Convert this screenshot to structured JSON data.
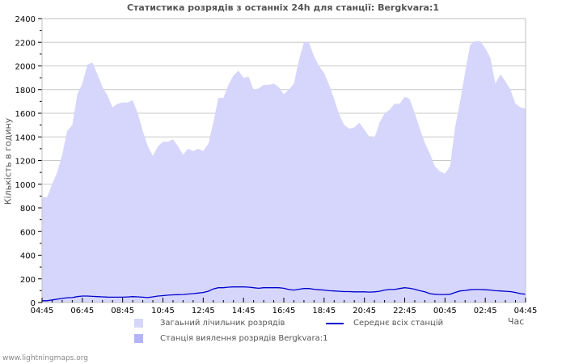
{
  "title": "Статистика розрядів з останніх 24h для станції: Bergkvara:1",
  "watermark": "www.lightningmaps.org",
  "colors": {
    "total_fill": "#d6d6fc",
    "station_fill": "#b4b4f8",
    "average_line": "#0000cc",
    "grid": "#c8c8c8",
    "axis": "#c0c0c0"
  },
  "chart_data": {
    "type": "area",
    "title": "Статистика розрядів з останніх 24h для станції: Bergkvara:1",
    "xlabel": "Час",
    "ylabel": "Кількість в годину",
    "ylim": [
      0,
      2400
    ],
    "yticks": [
      0,
      200,
      400,
      600,
      800,
      1000,
      1200,
      1400,
      1600,
      1800,
      2000,
      2200,
      2400
    ],
    "xtick_labels": [
      "04:45",
      "06:45",
      "08:45",
      "10:45",
      "12:45",
      "14:45",
      "16:45",
      "18:45",
      "20:45",
      "22:45",
      "00:45",
      "02:45",
      "04:45"
    ],
    "grid": true,
    "legend_position": "bottom",
    "legend": [
      {
        "name": "Загаьний лічильник розрядів",
        "kind": "area",
        "color": "#d6d6fc"
      },
      {
        "name": "Середнє всіх станцій",
        "kind": "line",
        "color": "#0000cc"
      },
      {
        "name": "Станція виялення розрядів Bergkvara:1",
        "kind": "area",
        "color": "#b4b4f8"
      }
    ],
    "x_step_minutes": 15,
    "x_start": "04:45",
    "series": [
      {
        "name": "Загаьний лічильник розрядів",
        "type": "area",
        "values": [
          890,
          890,
          1000,
          1100,
          1250,
          1450,
          1500,
          1760,
          1850,
          2010,
          2030,
          1930,
          1820,
          1750,
          1650,
          1680,
          1690,
          1690,
          1710,
          1600,
          1450,
          1320,
          1240,
          1320,
          1360,
          1360,
          1380,
          1320,
          1250,
          1300,
          1280,
          1300,
          1280,
          1340,
          1520,
          1730,
          1730,
          1840,
          1920,
          1960,
          1900,
          1910,
          1800,
          1810,
          1840,
          1840,
          1850,
          1820,
          1760,
          1800,
          1850,
          2050,
          2200,
          2200,
          2080,
          2000,
          1940,
          1840,
          1720,
          1590,
          1500,
          1470,
          1480,
          1520,
          1460,
          1400,
          1390,
          1520,
          1600,
          1630,
          1680,
          1680,
          1740,
          1720,
          1600,
          1470,
          1350,
          1260,
          1150,
          1110,
          1090,
          1150,
          1480,
          1700,
          1950,
          2180,
          2210,
          2210,
          2150,
          2070,
          1850,
          1930,
          1870,
          1800,
          1680,
          1650,
          1640
        ]
      },
      {
        "name": "Середнє всіх станцій",
        "type": "line",
        "values": [
          15,
          15,
          22,
          28,
          35,
          40,
          42,
          50,
          55,
          55,
          52,
          50,
          48,
          46,
          45,
          45,
          45,
          47,
          50,
          48,
          45,
          42,
          48,
          55,
          58,
          62,
          65,
          66,
          68,
          72,
          75,
          80,
          85,
          95,
          115,
          125,
          125,
          130,
          132,
          132,
          132,
          130,
          125,
          120,
          125,
          125,
          125,
          125,
          120,
          110,
          105,
          112,
          118,
          118,
          112,
          108,
          105,
          100,
          98,
          95,
          92,
          92,
          90,
          90,
          90,
          88,
          90,
          95,
          105,
          110,
          110,
          118,
          125,
          120,
          112,
          100,
          90,
          75,
          70,
          68,
          68,
          70,
          85,
          98,
          102,
          108,
          110,
          110,
          108,
          105,
          100,
          98,
          95,
          92,
          85,
          75,
          70
        ]
      },
      {
        "name": "Станція виялення розрядів Bergkvara:1",
        "type": "area",
        "values": []
      }
    ]
  }
}
